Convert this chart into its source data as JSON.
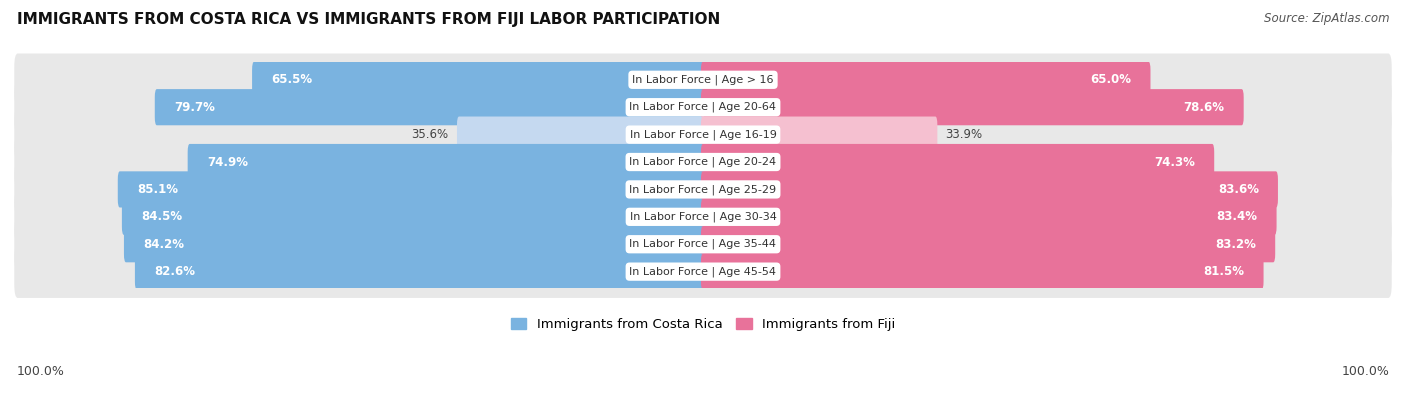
{
  "title": "IMMIGRANTS FROM COSTA RICA VS IMMIGRANTS FROM FIJI LABOR PARTICIPATION",
  "source": "Source: ZipAtlas.com",
  "categories": [
    "In Labor Force | Age > 16",
    "In Labor Force | Age 20-64",
    "In Labor Force | Age 16-19",
    "In Labor Force | Age 20-24",
    "In Labor Force | Age 25-29",
    "In Labor Force | Age 30-34",
    "In Labor Force | Age 35-44",
    "In Labor Force | Age 45-54"
  ],
  "costa_rica_values": [
    65.5,
    79.7,
    35.6,
    74.9,
    85.1,
    84.5,
    84.2,
    82.6
  ],
  "fiji_values": [
    65.0,
    78.6,
    33.9,
    74.3,
    83.6,
    83.4,
    83.2,
    81.5
  ],
  "costa_rica_color": "#7ab3e0",
  "fiji_color": "#e8729a",
  "costa_rica_light_color": "#c5d9f0",
  "fiji_light_color": "#f5c0d0",
  "row_bg_even": "#efefef",
  "row_bg_odd": "#e8e8e8",
  "max_value": 100.0,
  "label_fontsize": 8.5,
  "title_fontsize": 11,
  "legend_label_costa_rica": "Immigrants from Costa Rica",
  "legend_label_fiji": "Immigrants from Fiji",
  "axis_label_left": "100.0%",
  "axis_label_right": "100.0%"
}
